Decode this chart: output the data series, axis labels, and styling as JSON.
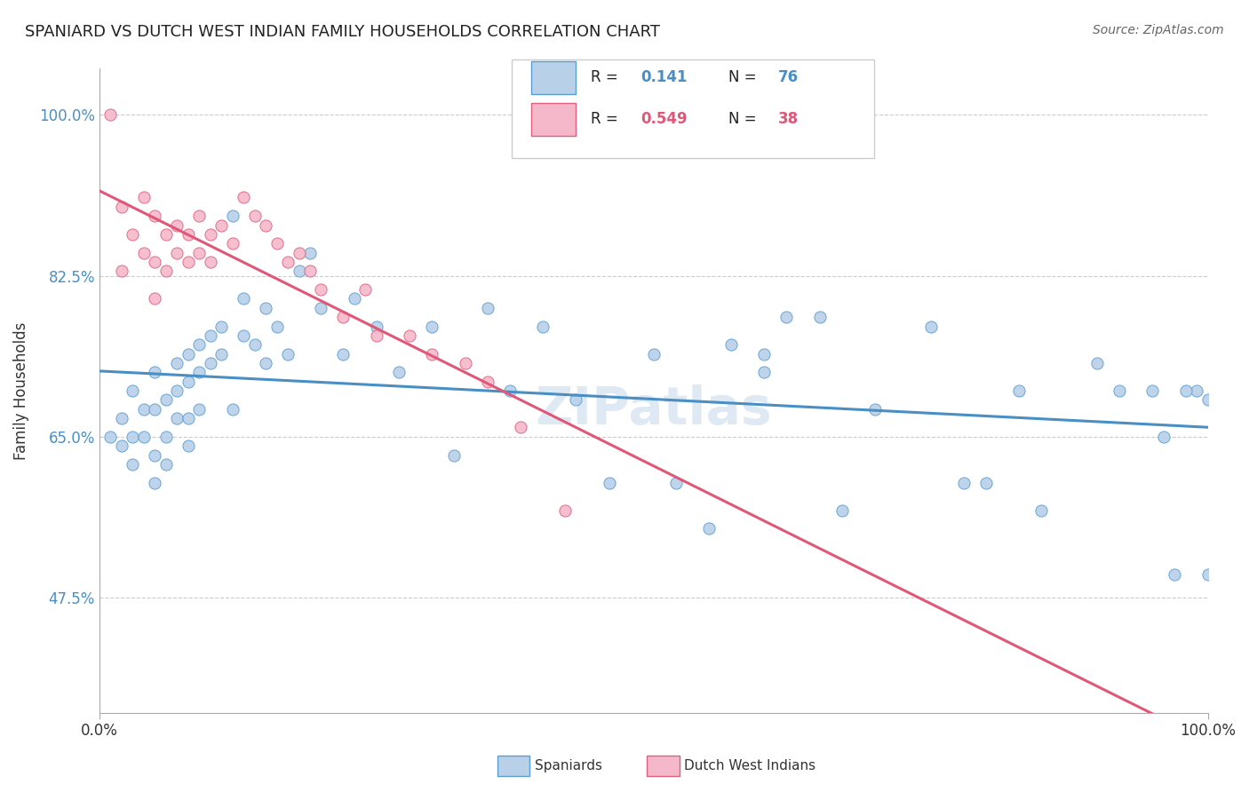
{
  "title": "SPANIARD VS DUTCH WEST INDIAN FAMILY HOUSEHOLDS CORRELATION CHART",
  "ylabel": "Family Households",
  "source": "Source: ZipAtlas.com",
  "legend_label1": "Spaniards",
  "legend_label2": "Dutch West Indians",
  "R1": 0.141,
  "N1": 76,
  "R2": 0.549,
  "N2": 38,
  "blue_fill": "#b8d0e8",
  "blue_edge": "#5a9fd4",
  "pink_fill": "#f5b8ca",
  "pink_edge": "#e06080",
  "blue_line": "#4a8fc4",
  "pink_line": "#e05878",
  "watermark": "ZIPatlas",
  "blue_x": [
    1,
    2,
    2,
    3,
    3,
    3,
    4,
    4,
    5,
    5,
    5,
    5,
    6,
    6,
    6,
    7,
    7,
    7,
    8,
    8,
    8,
    8,
    9,
    9,
    9,
    10,
    10,
    11,
    11,
    12,
    12,
    13,
    13,
    14,
    15,
    15,
    16,
    17,
    18,
    19,
    20,
    22,
    23,
    25,
    27,
    30,
    32,
    35,
    37,
    40,
    43,
    46,
    50,
    52,
    55,
    57,
    60,
    60,
    62,
    65,
    67,
    70,
    75,
    78,
    80,
    83,
    85,
    90,
    92,
    95,
    97,
    99,
    100,
    100,
    98,
    96
  ],
  "blue_y": [
    65,
    67,
    64,
    70,
    65,
    62,
    68,
    65,
    72,
    68,
    63,
    60,
    69,
    65,
    62,
    73,
    70,
    67,
    74,
    71,
    67,
    64,
    75,
    72,
    68,
    76,
    73,
    77,
    74,
    89,
    68,
    80,
    76,
    75,
    79,
    73,
    77,
    74,
    83,
    85,
    79,
    74,
    80,
    77,
    72,
    77,
    63,
    79,
    70,
    77,
    69,
    60,
    74,
    60,
    55,
    75,
    74,
    72,
    78,
    78,
    57,
    68,
    77,
    60,
    60,
    70,
    57,
    73,
    70,
    70,
    50,
    70,
    69,
    50,
    70,
    65
  ],
  "pink_x": [
    1,
    2,
    2,
    3,
    4,
    4,
    5,
    5,
    5,
    6,
    6,
    7,
    7,
    8,
    8,
    9,
    9,
    10,
    10,
    11,
    12,
    13,
    14,
    15,
    16,
    17,
    18,
    19,
    20,
    22,
    24,
    25,
    28,
    30,
    33,
    35,
    38,
    42
  ],
  "pink_y": [
    100,
    90,
    83,
    87,
    91,
    85,
    89,
    84,
    80,
    87,
    83,
    88,
    85,
    87,
    84,
    89,
    85,
    84,
    87,
    88,
    86,
    91,
    89,
    88,
    86,
    84,
    85,
    83,
    81,
    78,
    81,
    76,
    76,
    74,
    73,
    71,
    66,
    57
  ]
}
